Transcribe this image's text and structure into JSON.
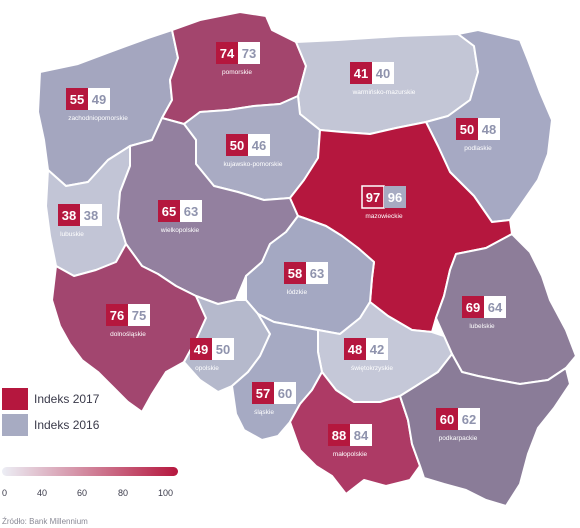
{
  "colors": {
    "index_2017": "#b5173e",
    "index_2016": "#a7abc2",
    "border": "#ffffff",
    "scale_start": "#eceef5",
    "scale_end": "#b5173e"
  },
  "legend": {
    "items": [
      {
        "label": "Indeks 2017",
        "color": "#b5173e"
      },
      {
        "label": "Indeks 2016",
        "color": "#a7abc2"
      }
    ],
    "scale": {
      "min": 0,
      "max": 100,
      "ticks": [
        "0",
        "40",
        "60",
        "80",
        "100"
      ]
    }
  },
  "source": "Źródło: Bank Millennium",
  "regions": [
    {
      "id": "pomorskie",
      "name": "pomorskie",
      "v2017": "74",
      "v2016": "73",
      "fill": "#a3456d"
    },
    {
      "id": "zachodniopomorskie",
      "name": "zachodniopomorskie",
      "v2017": "55",
      "v2016": "49",
      "fill": "#a4a6bf"
    },
    {
      "id": "warminsko-mazurskie",
      "name": "warmińsko-mazurskie",
      "v2017": "41",
      "v2016": "40",
      "fill": "#c3c6d6"
    },
    {
      "id": "podlaskie",
      "name": "podlaskie",
      "v2017": "50",
      "v2016": "48",
      "fill": "#a6a9c3"
    },
    {
      "id": "kujawsko-pomorskie",
      "name": "kujawsko-pomorskie",
      "v2017": "50",
      "v2016": "46",
      "fill": "#a9abc3"
    },
    {
      "id": "lubuskie",
      "name": "lubuskie",
      "v2017": "38",
      "v2016": "38",
      "fill": "#c2c5d6"
    },
    {
      "id": "wielkopolskie",
      "name": "wielkopolskie",
      "v2017": "65",
      "v2016": "63",
      "fill": "#93809f"
    },
    {
      "id": "mazowieckie",
      "name": "mazowieckie",
      "v2017": "97",
      "v2016": "96",
      "fill": "#b5173e",
      "highlight": true
    },
    {
      "id": "lodzkie",
      "name": "łódzkie",
      "v2017": "58",
      "v2016": "63",
      "fill": "#a4a8c2"
    },
    {
      "id": "lubelskie",
      "name": "lubelskie",
      "v2017": "69",
      "v2016": "64",
      "fill": "#8d7d99"
    },
    {
      "id": "dolnoslaskie",
      "name": "dolnośląskie",
      "v2017": "76",
      "v2016": "75",
      "fill": "#a2466f"
    },
    {
      "id": "opolskie",
      "name": "opolskie",
      "v2017": "49",
      "v2016": "50",
      "fill": "#b5b9cc"
    },
    {
      "id": "swietokrzyskie",
      "name": "świętokrzyskie",
      "v2017": "48",
      "v2016": "42",
      "fill": "#c5c8d8"
    },
    {
      "id": "slaskie",
      "name": "śląskie",
      "v2017": "57",
      "v2016": "60",
      "fill": "#a6aac3"
    },
    {
      "id": "malopolskie",
      "name": "małopolskie",
      "v2017": "88",
      "v2016": "84",
      "fill": "#ad3a65"
    },
    {
      "id": "podkarpackie",
      "name": "podkarpackie",
      "v2017": "60",
      "v2016": "62",
      "fill": "#8a7c98"
    }
  ]
}
